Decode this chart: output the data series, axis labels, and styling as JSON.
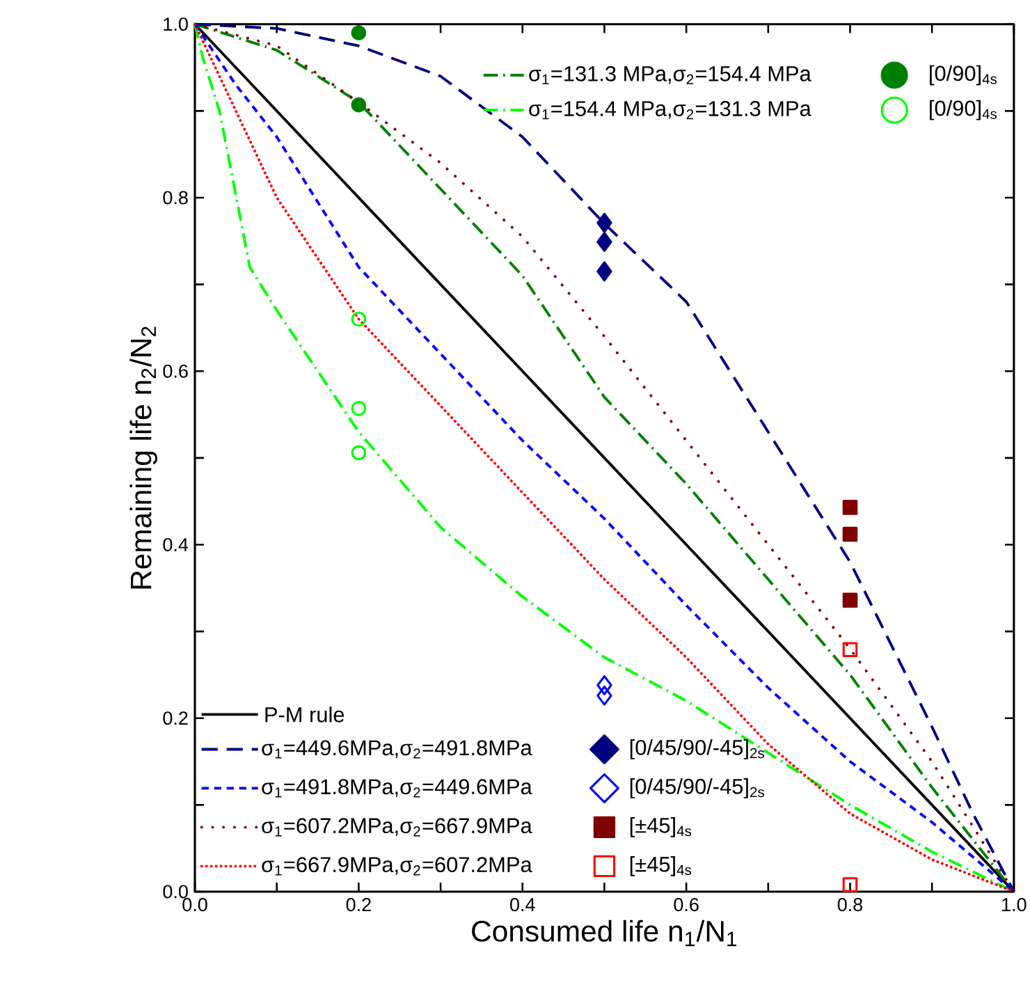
{
  "chart_data": {
    "type": "line",
    "xlabel": "Consumed life n$_{1}$/N$_{1}$",
    "ylabel": "Remaining life n$_{2}$/N$_{2}$",
    "xlim": [
      0,
      1
    ],
    "ylim": [
      0,
      1
    ],
    "xticks": [
      {
        "value": 0,
        "label": "0.0"
      },
      {
        "value": 0.1,
        "label": null
      },
      {
        "value": 0.2,
        "label": "0.2"
      },
      {
        "value": 0.3,
        "label": null
      },
      {
        "value": 0.4,
        "label": "0.4"
      },
      {
        "value": 0.5,
        "label": null
      },
      {
        "value": 0.6,
        "label": "0.6"
      },
      {
        "value": 0.7,
        "label": null
      },
      {
        "value": 0.8,
        "label": "0.8"
      },
      {
        "value": 0.9,
        "label": null
      },
      {
        "value": 1,
        "label": "1.0"
      }
    ],
    "yticks": [
      {
        "value": 0,
        "label": "0.0"
      },
      {
        "value": 0.1,
        "label": null
      },
      {
        "value": 0.2,
        "label": "0.2"
      },
      {
        "value": 0.3,
        "label": null
      },
      {
        "value": 0.4,
        "label": "0.4"
      },
      {
        "value": 0.5,
        "label": null
      },
      {
        "value": 0.6,
        "label": "0.6"
      },
      {
        "value": 0.7,
        "label": null
      },
      {
        "value": 0.8,
        "label": "0.8"
      },
      {
        "value": 0.9,
        "label": null
      },
      {
        "value": 1,
        "label": "1.0"
      }
    ],
    "grid": false,
    "legend": "bottom left",
    "series": [
      {
        "name": "P-M rule",
        "color": "#000000",
        "line_style": "solid",
        "x": [
          0,
          1
        ],
        "values": [
          1,
          0
        ]
      },
      {
        "name": "σ$_{1}$=131.3 MPa,σ$_{2}$=154.4 MPa",
        "color": "#008000",
        "line_style": "dashdot",
        "x": [
          0,
          0.1,
          0.2,
          0.3,
          0.4,
          0.5,
          0.6,
          0.7,
          0.8,
          0.9,
          0.95,
          1
        ],
        "values": [
          1,
          0.97,
          0.91,
          0.81,
          0.71,
          0.57,
          0.47,
          0.36,
          0.25,
          0.12,
          0.06,
          0
        ]
      },
      {
        "name": "σ$_{1}$=154.4 MPa,σ$_{2}$=131.3 MPa",
        "color": "#00ff00",
        "line_style": "dashdot",
        "x": [
          0,
          0.01,
          0.03,
          0.067,
          0.1,
          0.2,
          0.3,
          0.4,
          0.5,
          0.6,
          0.7,
          0.8,
          0.9,
          1
        ],
        "values": [
          1,
          0.96,
          0.9,
          0.72,
          0.67,
          0.53,
          0.42,
          0.34,
          0.27,
          0.22,
          0.16,
          0.1,
          0.046,
          0
        ]
      },
      {
        "name": "σ$_{1}$=449.6MPa,σ$_{2}$=491.8MPa",
        "color": "#000080",
        "line_style": "dashed",
        "x": [
          0,
          0.1,
          0.2,
          0.3,
          0.4,
          0.5,
          0.6,
          0.7,
          0.8,
          0.9,
          0.95,
          1
        ],
        "values": [
          1,
          0.995,
          0.975,
          0.94,
          0.87,
          0.77,
          0.68,
          0.53,
          0.38,
          0.19,
          0.09,
          0
        ]
      },
      {
        "name": "σ$_{1}$=491.8MPa,σ$_{2}$=449.6MPa",
        "color": "#0000ff",
        "line_style": "short dashed",
        "x": [
          0,
          0.05,
          0.1,
          0.2,
          0.3,
          0.4,
          0.5,
          0.6,
          0.7,
          0.8,
          0.9,
          1
        ],
        "values": [
          1,
          0.93,
          0.87,
          0.72,
          0.62,
          0.52,
          0.43,
          0.33,
          0.235,
          0.15,
          0.08,
          0
        ]
      },
      {
        "name": "σ$_{1}$=607.2MPa,σ$_{2}$=667.9MPa",
        "color": "#800000",
        "line_style": "loosely dotted",
        "x": [
          0,
          0.1,
          0.2,
          0.3,
          0.4,
          0.5,
          0.6,
          0.7,
          0.8,
          0.9,
          1
        ],
        "values": [
          1,
          0.975,
          0.91,
          0.84,
          0.755,
          0.64,
          0.52,
          0.4,
          0.28,
          0.15,
          0
        ]
      },
      {
        "name": "σ$_{1}$=667.9MPa,σ$_{2}$=607.2MPa",
        "color": "#ff0000",
        "line_style": "dotted",
        "x": [
          0,
          0.02,
          0.05,
          0.1,
          0.2,
          0.3,
          0.4,
          0.5,
          0.6,
          0.7,
          0.8,
          0.9,
          1
        ],
        "values": [
          1,
          0.96,
          0.9,
          0.8,
          0.66,
          0.56,
          0.46,
          0.36,
          0.27,
          0.17,
          0.09,
          0.037,
          0
        ]
      },
      {
        "name": "[0/90]$_{4s}$",
        "type": "scatter",
        "color": "#008000",
        "marker": "circle",
        "x": [
          0.2,
          0.2
        ],
        "values": [
          0.99,
          0.907
        ]
      },
      {
        "name": "[0/90]$_{4s}$",
        "type": "scatter",
        "color": "#00ff00",
        "marker": "circle open",
        "x": [
          0.2,
          0.2,
          0.2
        ],
        "values": [
          0.66,
          0.557,
          0.506
        ]
      },
      {
        "name": "[0/45/90/-45]$_{2s}$",
        "type": "scatter",
        "color": "#000080",
        "marker": "diamond",
        "x": [
          0.5,
          0.5,
          0.5
        ],
        "values": [
          0.771,
          0.749,
          0.715
        ]
      },
      {
        "name": "[0/45/90/-45]$_{2s}$",
        "type": "scatter",
        "color": "#0000ff",
        "marker": "diamond open",
        "x": [
          0.5,
          0.5
        ],
        "values": [
          0.238,
          0.226
        ]
      },
      {
        "name": "[±45]$_{4s}$",
        "type": "scatter",
        "color": "#800000",
        "marker": "square",
        "x": [
          0.8,
          0.8,
          0.8
        ],
        "values": [
          0.443,
          0.412,
          0.336
        ]
      },
      {
        "name": "[±45]$_{4s}$",
        "type": "scatter",
        "color": "#ff0000",
        "marker": "square open",
        "x": [
          0.8,
          0.8
        ],
        "values": [
          0.279,
          0.008
        ]
      }
    ]
  }
}
